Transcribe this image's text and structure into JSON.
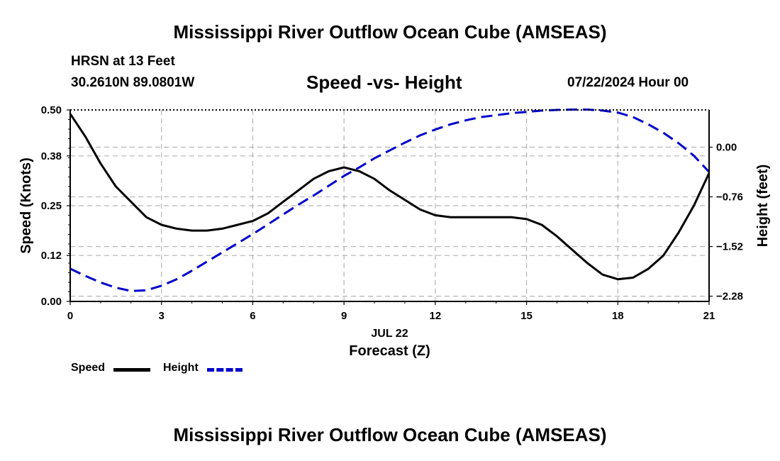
{
  "header": {
    "title": "Mississippi River Outflow Ocean Cube (AMSEAS)",
    "station": "HRSN at 13 Feet",
    "coords": "30.2610N  89.0801W",
    "subtitle": "Speed -vs- Height",
    "datetime": "07/22/2024 Hour 00"
  },
  "footer": {
    "title": "Mississippi River Outflow Ocean Cube (AMSEAS)"
  },
  "legend": {
    "speed": "Speed",
    "height": "Height"
  },
  "colors": {
    "speed": "#000000",
    "height": "#0000cc"
  },
  "chart_data": {
    "type": "line",
    "title": "Speed -vs- Height",
    "xlabel": "Forecast (Z)",
    "xdate": "JUL 22",
    "ylabel": "Speed (Knots)",
    "y2label": "Height (feet)",
    "xlim": [
      0,
      21
    ],
    "ylim": [
      0,
      0.5
    ],
    "y2lim": [
      -2.36,
      0.57
    ],
    "xticks": [
      "0",
      "3",
      "6",
      "9",
      "12",
      "15",
      "18",
      "21"
    ],
    "yticks": [
      "0.00",
      "0.12",
      "0.25",
      "0.38",
      "0.50"
    ],
    "y2ticks": [
      "-2.28",
      "-1.52",
      "-0.76",
      "0.00"
    ],
    "grid": true,
    "series": [
      {
        "name": "Speed",
        "axis": "left",
        "x": [
          0,
          0.5,
          1,
          1.5,
          2,
          2.5,
          3,
          3.5,
          4,
          4.5,
          5,
          5.5,
          6,
          6.5,
          7,
          7.5,
          8,
          8.5,
          9,
          9.5,
          10,
          10.5,
          11,
          11.5,
          12,
          12.5,
          13,
          13.5,
          14,
          14.5,
          15,
          15.5,
          16,
          16.5,
          17,
          17.5,
          18,
          18.5,
          19,
          19.5,
          20,
          20.5,
          21
        ],
        "values": [
          0.49,
          0.43,
          0.36,
          0.3,
          0.26,
          0.22,
          0.2,
          0.19,
          0.185,
          0.185,
          0.19,
          0.2,
          0.21,
          0.23,
          0.26,
          0.29,
          0.32,
          0.34,
          0.35,
          0.34,
          0.32,
          0.29,
          0.265,
          0.24,
          0.225,
          0.22,
          0.22,
          0.22,
          0.22,
          0.22,
          0.215,
          0.2,
          0.17,
          0.135,
          0.1,
          0.07,
          0.058,
          0.062,
          0.085,
          0.12,
          0.18,
          0.25,
          0.335
        ]
      },
      {
        "name": "Height",
        "axis": "right",
        "x": [
          0,
          0.5,
          1,
          1.5,
          2,
          2.5,
          3,
          3.5,
          4,
          4.5,
          5,
          5.5,
          6,
          6.5,
          7,
          7.5,
          8,
          8.5,
          9,
          9.5,
          10,
          10.5,
          11,
          11.5,
          12,
          12.5,
          13,
          13.5,
          14,
          14.5,
          15,
          15.5,
          16,
          16.5,
          17,
          17.5,
          18,
          18.5,
          19,
          19.5,
          20,
          20.5,
          21
        ],
        "values": [
          -1.86,
          -1.97,
          -2.07,
          -2.15,
          -2.2,
          -2.19,
          -2.12,
          -2.02,
          -1.89,
          -1.75,
          -1.61,
          -1.47,
          -1.33,
          -1.18,
          -1.03,
          -0.88,
          -0.74,
          -0.59,
          -0.44,
          -0.31,
          -0.17,
          -0.05,
          0.07,
          0.18,
          0.27,
          0.35,
          0.41,
          0.46,
          0.49,
          0.52,
          0.54,
          0.56,
          0.57,
          0.575,
          0.575,
          0.56,
          0.53,
          0.46,
          0.35,
          0.22,
          0.06,
          -0.13,
          -0.38
        ]
      }
    ]
  }
}
